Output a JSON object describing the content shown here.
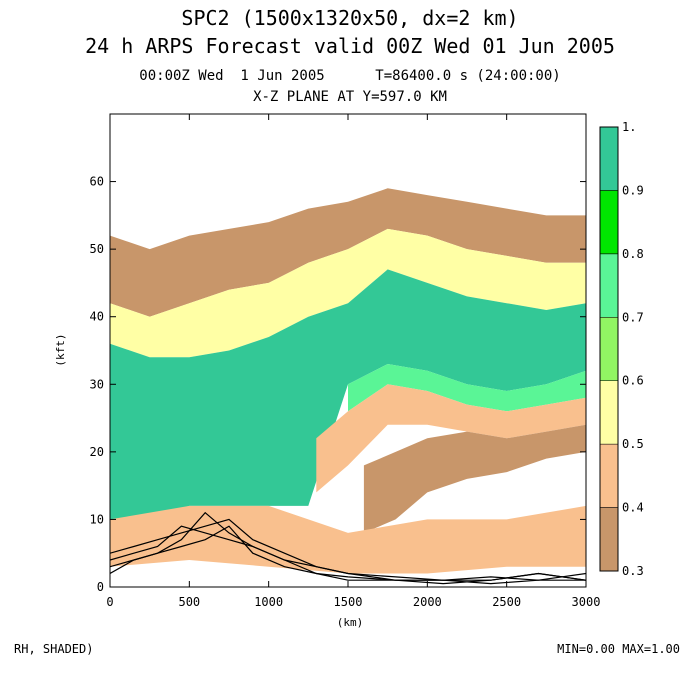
{
  "header": {
    "title_line1": "SPC2 (1500x1320x50, dx=2 km)",
    "title_line2": "24 h ARPS Forecast valid 00Z Wed 01 Jun 2005",
    "time_line": "00:00Z Wed  1 Jun 2005      T=86400.0 s (24:00:00)",
    "plane_line": "X-Z PLANE AT Y=597.0 KM"
  },
  "footer": {
    "left": "RH, SHADED)",
    "right": "MIN=0.00 MAX=1.00"
  },
  "chart_data": {
    "type": "heatmap",
    "title": "X-Z PLANE AT Y=597.0 KM",
    "variable": "RH",
    "xlabel": "(km)",
    "ylabel": "(kft)",
    "xlim": [
      0,
      3000
    ],
    "ylim": [
      0,
      70
    ],
    "x_ticks": [
      0,
      500,
      1000,
      1500,
      2000,
      2500,
      3000
    ],
    "y_ticks": [
      0,
      10,
      20,
      30,
      40,
      50,
      60
    ],
    "colorbar": {
      "levels": [
        0.3,
        0.4,
        0.5,
        0.6,
        0.7,
        0.8,
        0.9,
        1.0
      ],
      "tick_labels": [
        "0.3",
        "0.4",
        "0.5",
        "0.6",
        "0.7",
        "0.8",
        "0.9",
        "1."
      ],
      "colors": [
        "#c8966a",
        "#f9c08e",
        "#ffffa5",
        "#91f563",
        "#5af596",
        "#00e600",
        "#33c896"
      ]
    },
    "field_bands": [
      {
        "x": [
          0,
          250,
          500,
          750,
          1000,
          1250,
          1500,
          1750,
          2000,
          2250,
          2500,
          2750,
          3000
        ],
        "top": [
          52,
          50,
          52,
          53,
          54,
          56,
          57,
          59,
          58,
          57,
          56,
          55,
          55
        ],
        "bottom": [
          42,
          40,
          42,
          44,
          45,
          48,
          50,
          53,
          52,
          50,
          49,
          48,
          48
        ],
        "level": 0.4
      },
      {
        "x": [
          0,
          250,
          500,
          750,
          1000,
          1250,
          1500,
          1750,
          2000,
          2250,
          2500,
          2750,
          3000
        ],
        "top": [
          42,
          40,
          42,
          44,
          45,
          48,
          50,
          53,
          52,
          50,
          49,
          48,
          48
        ],
        "bottom": [
          36,
          34,
          34,
          35,
          37,
          40,
          42,
          47,
          45,
          43,
          42,
          41,
          42
        ],
        "level": 0.6
      },
      {
        "x": [
          0,
          250,
          500,
          750,
          1000,
          1250,
          1500,
          1750,
          2000,
          2250,
          2500,
          2750,
          3000
        ],
        "top": [
          36,
          34,
          34,
          35,
          37,
          40,
          42,
          47,
          45,
          43,
          42,
          41,
          42
        ],
        "bottom": [
          10,
          10,
          12,
          12,
          12,
          12,
          30,
          33,
          32,
          30,
          29,
          30,
          32
        ],
        "level": 1.0
      },
      {
        "x": [
          1500,
          1750,
          2000,
          2250,
          2500,
          2750,
          3000
        ],
        "top": [
          30,
          33,
          32,
          30,
          29,
          30,
          32
        ],
        "bottom": [
          26,
          30,
          29,
          27,
          26,
          27,
          28
        ],
        "level": 0.8
      },
      {
        "x": [
          1300,
          1500,
          1750,
          2000,
          2250,
          2500,
          2750,
          3000
        ],
        "top": [
          22,
          26,
          30,
          29,
          27,
          26,
          27,
          28
        ],
        "bottom": [
          14,
          18,
          24,
          24,
          23,
          22,
          23,
          24
        ],
        "level": 0.5
      },
      {
        "x": [
          1600,
          1800,
          2000,
          2250,
          2500,
          2750,
          3000
        ],
        "top": [
          18,
          20,
          22,
          23,
          22,
          23,
          24
        ],
        "bottom": [
          8,
          10,
          14,
          16,
          17,
          19,
          20
        ],
        "level": 0.4
      },
      {
        "x": [
          0,
          500,
          1000,
          1500,
          2000,
          2500,
          3000
        ],
        "top": [
          10,
          12,
          12,
          8,
          10,
          10,
          12
        ],
        "bottom": [
          3,
          4,
          3,
          2,
          2,
          3,
          3
        ],
        "level": 0.5
      }
    ],
    "surface_curves": [
      {
        "x": [
          0,
          150,
          300,
          450,
          600,
          750,
          900,
          1100,
          1300,
          1500,
          1800,
          2100,
          2400,
          2700,
          3000
        ],
        "y": [
          5,
          6,
          7,
          8,
          9,
          10,
          7,
          5,
          3,
          2,
          1,
          1,
          1,
          2,
          1
        ]
      },
      {
        "x": [
          0,
          150,
          300,
          450,
          600,
          750,
          900,
          1100,
          1300,
          1500,
          1800,
          2100,
          2400,
          2700,
          3000
        ],
        "y": [
          4,
          5,
          6,
          9,
          8,
          7,
          6,
          4,
          3,
          2,
          1.5,
          1,
          1.5,
          1,
          2
        ]
      },
      {
        "x": [
          0,
          150,
          300,
          450,
          600,
          750,
          900,
          1100,
          1300,
          1500,
          1800,
          2100,
          2400,
          2700,
          3000
        ],
        "y": [
          3,
          4,
          5,
          7,
          11,
          8,
          6,
          4,
          2,
          1.5,
          1,
          0.5,
          1,
          2,
          1
        ]
      },
      {
        "x": [
          0,
          150,
          300,
          450,
          600,
          750,
          900,
          1100,
          1300,
          1500,
          1800,
          2100,
          2400,
          2700,
          3000
        ],
        "y": [
          2,
          4,
          5,
          6,
          7,
          9,
          5,
          3,
          2,
          1,
          1,
          1,
          0.5,
          1,
          1
        ]
      }
    ]
  }
}
